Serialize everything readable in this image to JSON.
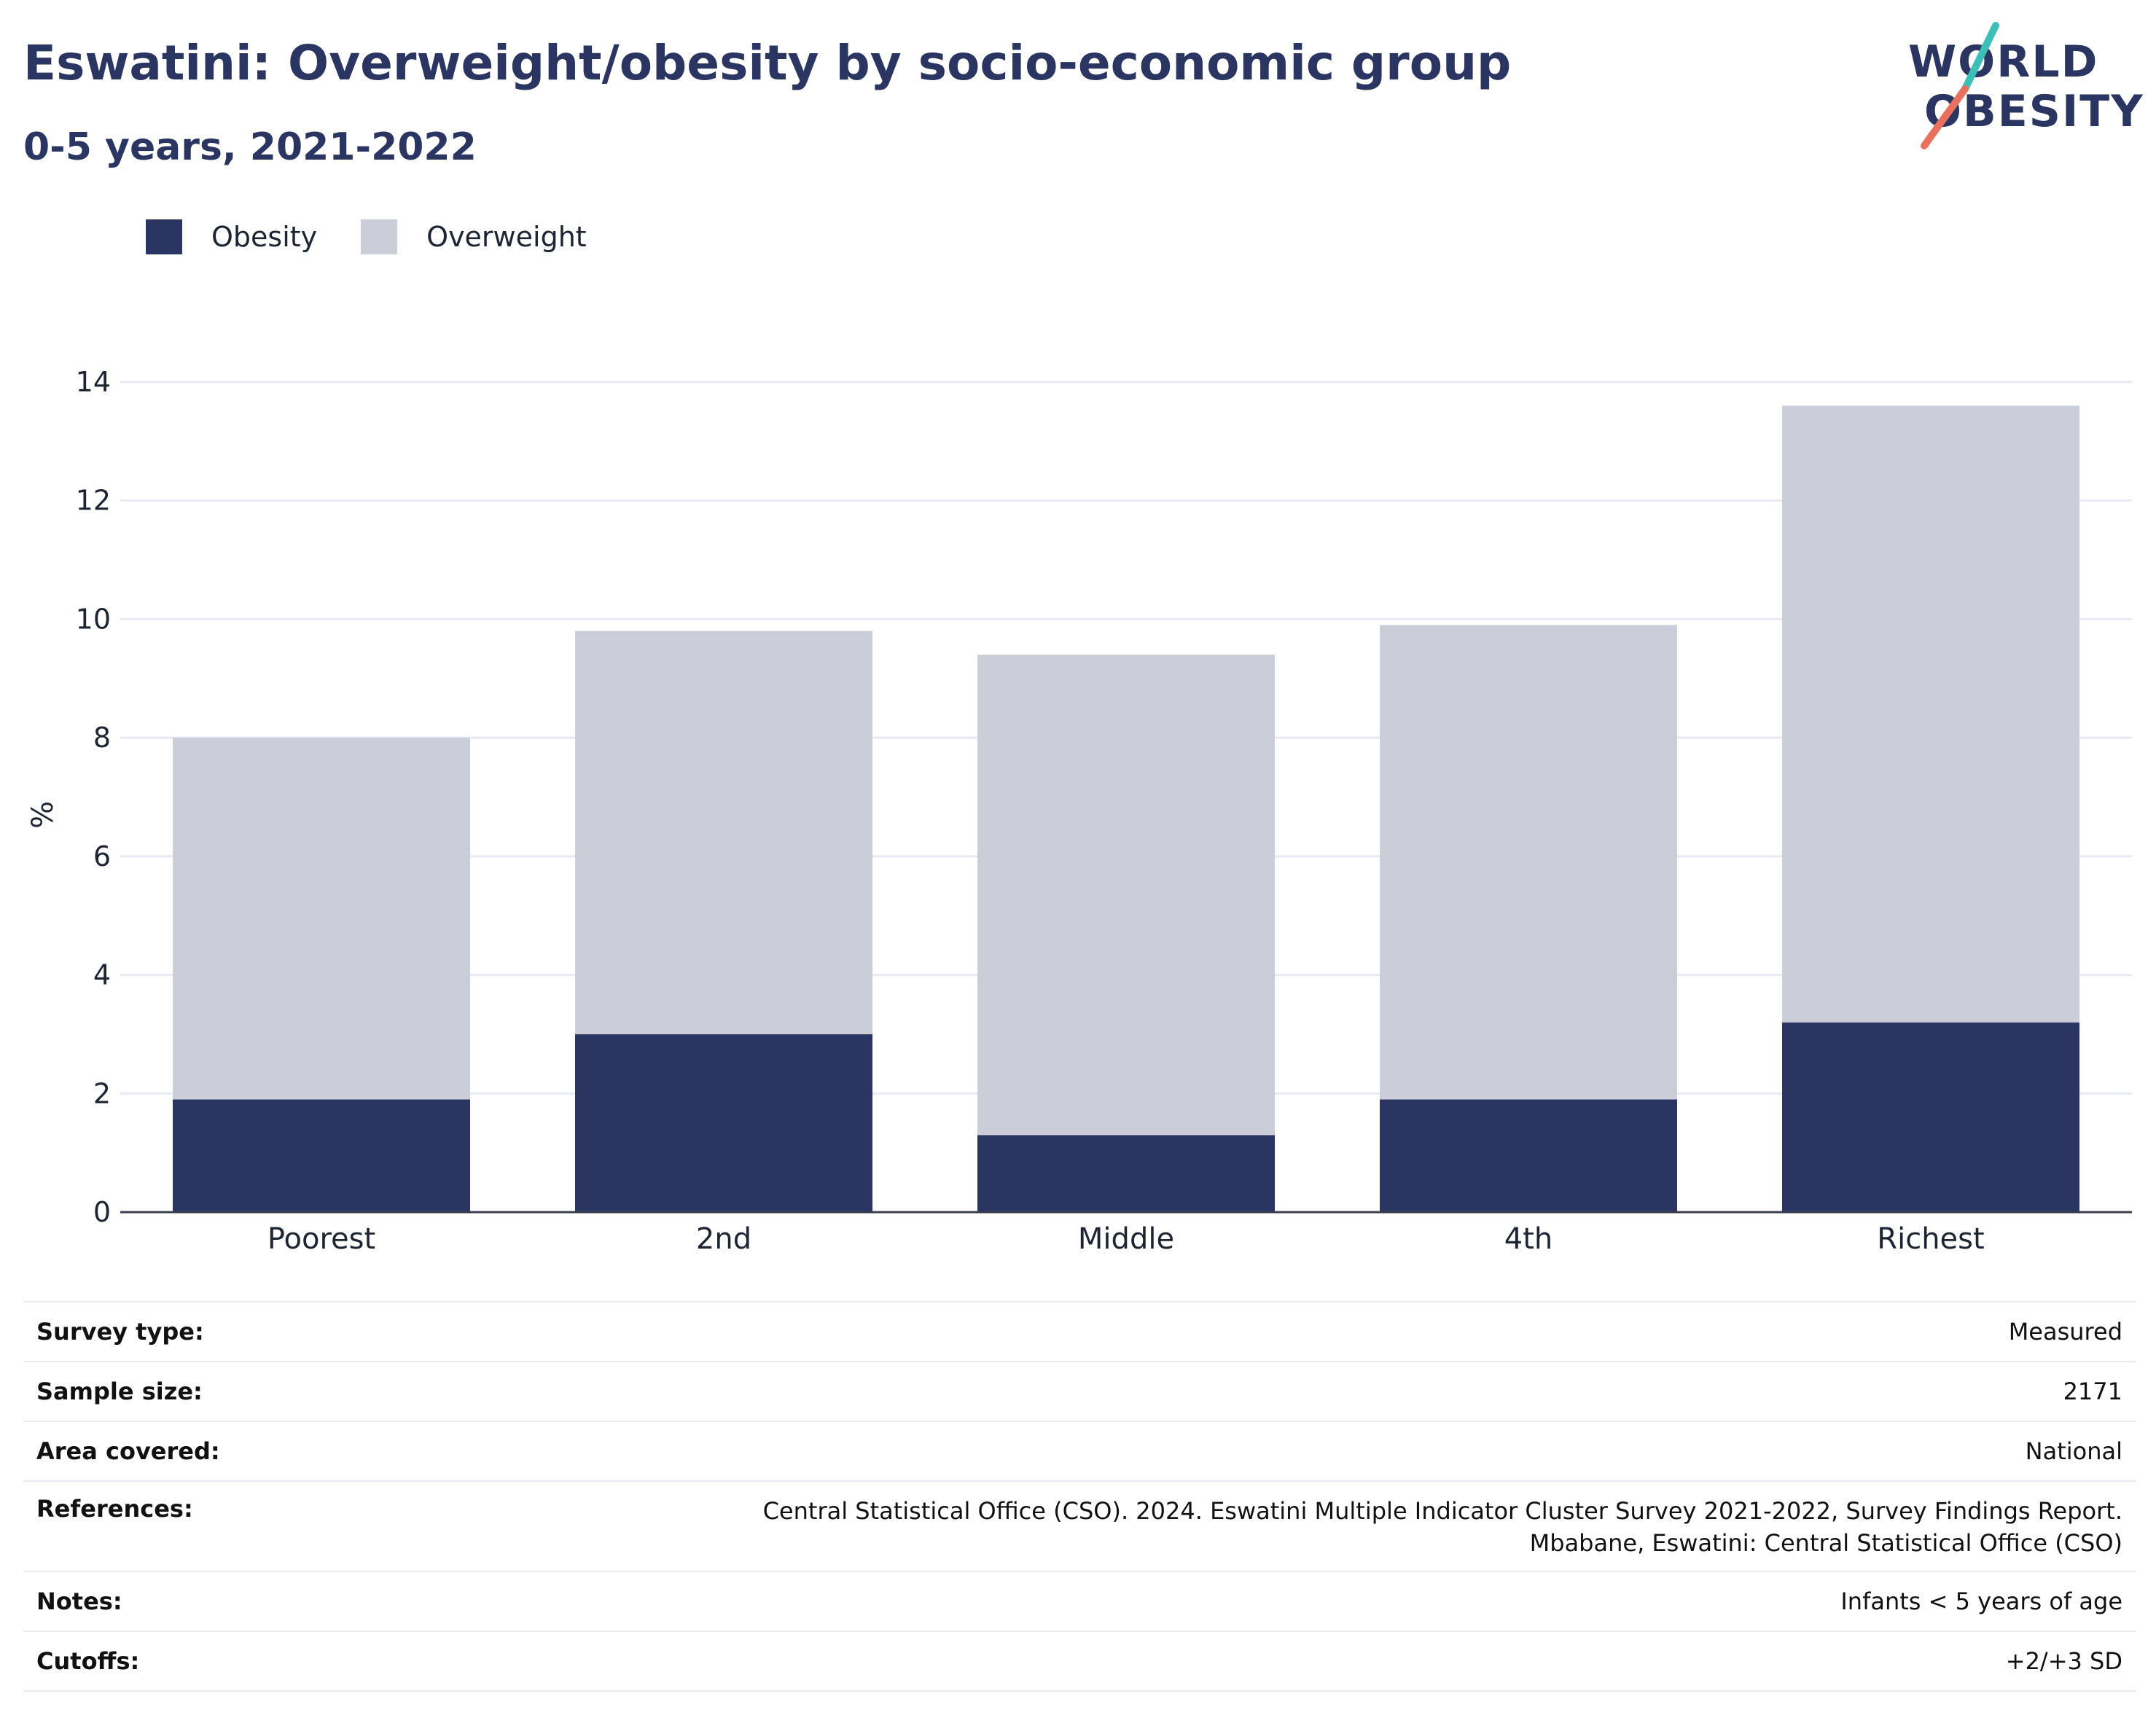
{
  "header": {
    "title": "Eswatini: Overweight/obesity by socio-economic group",
    "subtitle": "0-5 years, 2021-2022"
  },
  "logo": {
    "line1": "WORLD",
    "line2": "OBESITY"
  },
  "colors": {
    "obesity": "#2a3562",
    "overweight": "#cbcdd9",
    "accent_teal": "#3bbfb8",
    "accent_coral": "#e8705f"
  },
  "chart_data": {
    "type": "bar",
    "stacked": true,
    "categories": [
      "Poorest",
      "2nd",
      "Middle",
      "4th",
      "Richest"
    ],
    "series": [
      {
        "name": "Obesity",
        "values": [
          1.9,
          3.0,
          1.3,
          1.9,
          3.2
        ]
      },
      {
        "name": "Overweight",
        "values": [
          6.1,
          6.8,
          8.1,
          8.0,
          10.4
        ]
      }
    ],
    "ylabel": "%",
    "ylim": [
      0,
      14
    ],
    "yticks": [
      "0",
      "2",
      "4",
      "6",
      "8",
      "10",
      "12",
      "14"
    ],
    "grid": true,
    "legend": "top-left"
  },
  "info": [
    {
      "label": "Survey type:",
      "value": "Measured"
    },
    {
      "label": "Sample size:",
      "value": "2171"
    },
    {
      "label": "Area covered:",
      "value": "National"
    },
    {
      "label": "References:",
      "value": "Central Statistical Office (CSO). 2024. Eswatini Multiple Indicator Cluster Survey 2021-2022, Survey Findings Report. Mbabane, Eswatini: Central Statistical Office (CSO)"
    },
    {
      "label": "Notes:",
      "value": "Infants < 5 years of age"
    },
    {
      "label": "Cutoffs:",
      "value": "+2/+3 SD"
    }
  ]
}
